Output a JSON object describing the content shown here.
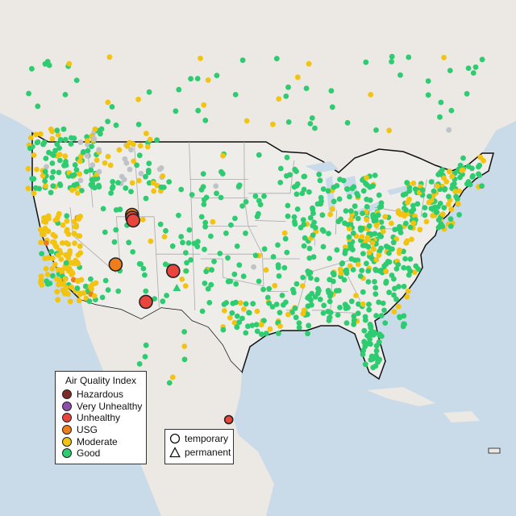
{
  "map": {
    "region": "Continental United States",
    "colors": {
      "water": "#c9dbe9",
      "land": "#efedea",
      "land_outside": "#ece8e3",
      "state_border": "#aaaaaa",
      "national_border": "#111111"
    }
  },
  "aqi_legend": {
    "title": "Air Quality Index",
    "items": [
      {
        "label": "Hazardous",
        "color": "#7e2a2a"
      },
      {
        "label": "Very Unhealthy",
        "color": "#8f4fa8"
      },
      {
        "label": "Unhealthy",
        "color": "#e8453c"
      },
      {
        "label": "USG",
        "color": "#f07d1c"
      },
      {
        "label": "Moderate",
        "color": "#f2c411"
      },
      {
        "label": "Good",
        "color": "#2ecc71"
      }
    ],
    "no_data_color": "#bfc3c7"
  },
  "monitor_type_legend": {
    "items": [
      {
        "label": "temporary",
        "icon": "circle-icon"
      },
      {
        "label": "permanent",
        "icon": "triangle-icon"
      }
    ]
  },
  "highlighted_monitors": [
    {
      "lon": -111.9,
      "lat": 41.2,
      "category": "USG"
    },
    {
      "lon": -111.9,
      "lat": 40.9,
      "category": "Unhealthy"
    },
    {
      "lon": -111.8,
      "lat": 40.6,
      "category": "Unhealthy"
    },
    {
      "lon": -114.6,
      "lat": 35.9,
      "category": "USG"
    },
    {
      "lon": -106.8,
      "lat": 35.2,
      "category": "Unhealthy"
    },
    {
      "lon": -110.8,
      "lat": 31.9,
      "category": "Unhealthy"
    },
    {
      "lon": -99.5,
      "lat": 19.3,
      "category": "Unhealthy"
    }
  ]
}
